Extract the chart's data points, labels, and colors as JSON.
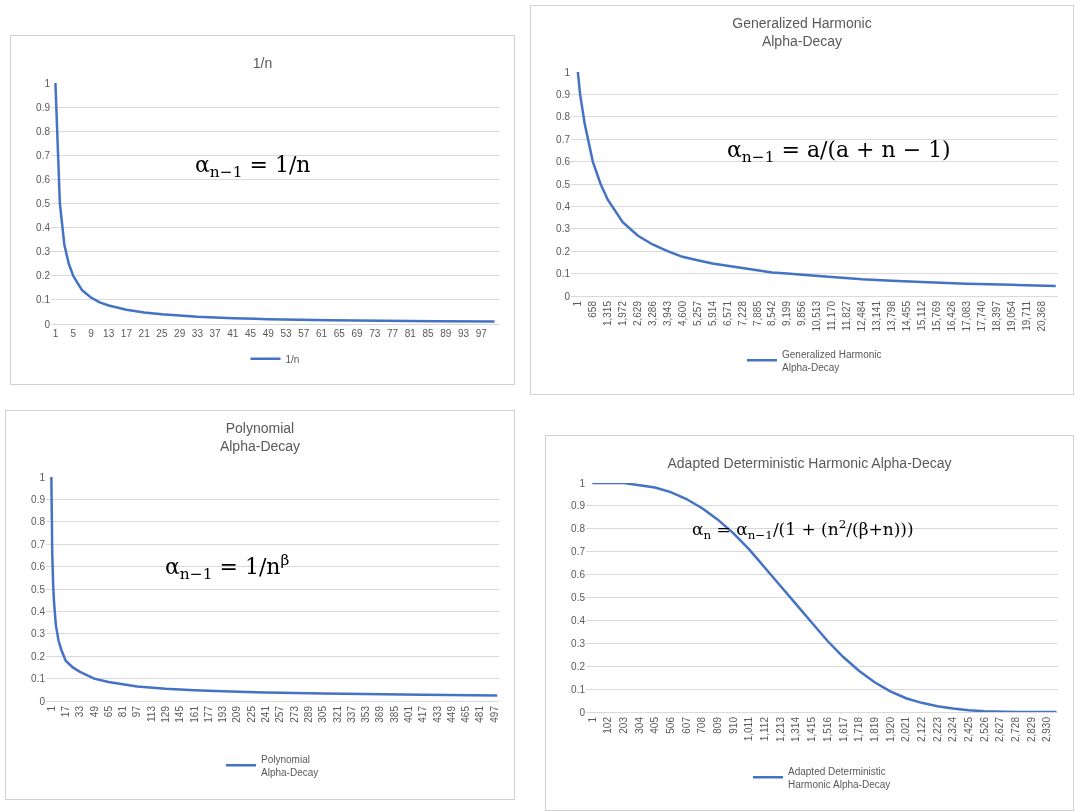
{
  "chart_data": [
    {
      "type": "line",
      "title": "1/n",
      "x": [
        1,
        2,
        3,
        4,
        5,
        6,
        7,
        9,
        11,
        13,
        17,
        21,
        25,
        33,
        41,
        49,
        63,
        87,
        100
      ],
      "xlim": [
        0,
        101
      ],
      "xticks": [
        1,
        5,
        9,
        13,
        17,
        21,
        25,
        29,
        33,
        37,
        41,
        45,
        49,
        53,
        57,
        61,
        65,
        69,
        73,
        77,
        81,
        85,
        89,
        93,
        97
      ],
      "ylim": [
        0,
        1
      ],
      "yticks": [
        0,
        0.1,
        0.2,
        0.3,
        0.4,
        0.5,
        0.6,
        0.7,
        0.8,
        0.9,
        1
      ],
      "series": [
        {
          "name": "1/n",
          "color": "#4472c4",
          "values": [
            1,
            0.5,
            0.33,
            0.25,
            0.2,
            0.17,
            0.14,
            0.11,
            0.09,
            0.077,
            0.059,
            0.048,
            0.04,
            0.03,
            0.024,
            0.02,
            0.016,
            0.011,
            0.01
          ]
        }
      ],
      "annotations": [
        "α$_{n−1}$ = 1/n"
      ],
      "legend": "bottom",
      "grid": "y",
      "marker": "none",
      "line_style": "solid"
    },
    {
      "type": "line",
      "title": "Generalized Harmonic\nAlpha-Decay",
      "x": [
        1,
        100,
        300,
        658,
        1000,
        1315,
        1972,
        2629,
        3286,
        3943,
        4600,
        5257,
        5914,
        6571,
        7228,
        7885,
        8542,
        9199,
        9856,
        11170,
        12484,
        13798,
        15112,
        17083,
        19054,
        21000
      ],
      "xlim": [
        -300,
        21100
      ],
      "xticks": [
        1,
        658,
        {
          "value": 1315,
          "label": "1,315"
        },
        {
          "value": 1972,
          "label": "1,972"
        },
        {
          "value": 2629,
          "label": "2,629"
        },
        {
          "value": 3286,
          "label": "3,286"
        },
        {
          "value": 3943,
          "label": "3,943"
        },
        {
          "value": 4600,
          "label": "4,600"
        },
        {
          "value": 5257,
          "label": "5,257"
        },
        {
          "value": 5914,
          "label": "5,914"
        },
        {
          "value": 6571,
          "label": "6,571"
        },
        {
          "value": 7228,
          "label": "7,228"
        },
        {
          "value": 7885,
          "label": "7,885"
        },
        {
          "value": 8542,
          "label": "8,542"
        },
        {
          "value": 9199,
          "label": "9,199"
        },
        {
          "value": 9856,
          "label": "9,856"
        },
        {
          "value": 10513,
          "label": "10,513"
        },
        {
          "value": 11170,
          "label": "11,170"
        },
        {
          "value": 11827,
          "label": "11,827"
        },
        {
          "value": 12484,
          "label": "12,484"
        },
        {
          "value": 13141,
          "label": "13,141"
        },
        {
          "value": 13798,
          "label": "13,798"
        },
        {
          "value": 14455,
          "label": "14,455"
        },
        {
          "value": 15112,
          "label": "15,112"
        },
        {
          "value": 15769,
          "label": "15,769"
        },
        {
          "value": 16426,
          "label": "16,426"
        },
        {
          "value": 17083,
          "label": "17,083"
        },
        {
          "value": 17740,
          "label": "17,740"
        },
        {
          "value": 18397,
          "label": "18,397"
        },
        {
          "value": 19054,
          "label": "19,054"
        },
        {
          "value": 19711,
          "label": "19,711"
        },
        {
          "value": 20368,
          "label": "20,368"
        }
      ],
      "ylim": [
        0,
        1
      ],
      "yticks": [
        0,
        0.1,
        0.2,
        0.3,
        0.4,
        0.5,
        0.6,
        0.7,
        0.8,
        0.9,
        1
      ],
      "series": [
        {
          "name": "Generalized Harmonic\nAlpha-Decay",
          "color": "#4472c4",
          "values": [
            1,
            0.9,
            0.77,
            0.6,
            0.5,
            0.43,
            0.33,
            0.27,
            0.23,
            0.2,
            0.175,
            0.16,
            0.145,
            0.135,
            0.125,
            0.115,
            0.105,
            0.1,
            0.095,
            0.085,
            0.075,
            0.068,
            0.062,
            0.055,
            0.05,
            0.045
          ]
        }
      ],
      "annotations": [
        "α$_{n−1}$ = a/(a + n − 1)"
      ],
      "legend": "bottom",
      "grid": "y",
      "marker": "none",
      "line_style": "solid"
    },
    {
      "type": "line",
      "title": "Polynomial\nAlpha-Decay",
      "x": [
        1,
        2,
        3,
        4,
        6,
        9,
        12,
        17,
        25,
        33,
        49,
        65,
        81,
        97,
        129,
        161,
        193,
        241,
        305,
        417,
        500
      ],
      "xlim": [
        -5,
        502
      ],
      "xticks": [
        1,
        17,
        33,
        49,
        65,
        81,
        97,
        113,
        129,
        145,
        161,
        177,
        193,
        209,
        225,
        241,
        257,
        273,
        289,
        305,
        321,
        337,
        353,
        369,
        385,
        401,
        417,
        433,
        449,
        465,
        481,
        497
      ],
      "ylim": [
        0,
        1
      ],
      "yticks": [
        0,
        0.1,
        0.2,
        0.3,
        0.4,
        0.5,
        0.6,
        0.7,
        0.8,
        0.9,
        1
      ],
      "series": [
        {
          "name": "Polynomial\nAlpha-Decay",
          "color": "#4472c4",
          "values": [
            1,
            0.66,
            0.52,
            0.44,
            0.34,
            0.27,
            0.23,
            0.18,
            0.15,
            0.13,
            0.1,
            0.085,
            0.075,
            0.065,
            0.055,
            0.048,
            0.043,
            0.038,
            0.033,
            0.028,
            0.025
          ]
        }
      ],
      "annotations": [
        "α$_{n−1}$ = 1/n$^{β}$"
      ],
      "legend": "bottom",
      "grid": "y",
      "marker": "none",
      "line_style": "solid"
    },
    {
      "type": "line",
      "title": "Adapted Deterministic Harmonic Alpha-Decay",
      "x": [
        1,
        203,
        304,
        405,
        506,
        607,
        708,
        809,
        910,
        1011,
        1112,
        1213,
        1314,
        1415,
        1516,
        1617,
        1718,
        1819,
        1920,
        2021,
        2122,
        2223,
        2324,
        2425,
        2526,
        2728,
        2990
      ],
      "xlim": [
        -40,
        3000
      ],
      "xticks": [
        1,
        102,
        203,
        304,
        405,
        506,
        607,
        708,
        809,
        910,
        {
          "value": 1011,
          "label": "1,011"
        },
        {
          "value": 1112,
          "label": "1,112"
        },
        {
          "value": 1213,
          "label": "1,213"
        },
        {
          "value": 1314,
          "label": "1,314"
        },
        {
          "value": 1415,
          "label": "1,415"
        },
        {
          "value": 1516,
          "label": "1,516"
        },
        {
          "value": 1617,
          "label": "1,617"
        },
        {
          "value": 1718,
          "label": "1,718"
        },
        {
          "value": 1819,
          "label": "1,819"
        },
        {
          "value": 1920,
          "label": "1,920"
        },
        {
          "value": 2021,
          "label": "2,021"
        },
        {
          "value": 2122,
          "label": "2,122"
        },
        {
          "value": 2223,
          "label": "2,223"
        },
        {
          "value": 2324,
          "label": "2,324"
        },
        {
          "value": 2425,
          "label": "2,425"
        },
        {
          "value": 2526,
          "label": "2,526"
        },
        {
          "value": 2627,
          "label": "2,627"
        },
        {
          "value": 2728,
          "label": "2,728"
        },
        {
          "value": 2829,
          "label": "2,829"
        },
        {
          "value": 2930,
          "label": "2,930"
        }
      ],
      "ylim": [
        0,
        1
      ],
      "yticks": [
        0,
        0.1,
        0.2,
        0.3,
        0.4,
        0.5,
        0.6,
        0.7,
        0.8,
        0.9,
        1
      ],
      "series": [
        {
          "name": "Adapted Deterministic\nHarmonic Alpha-Decay",
          "color": "#4472c4",
          "values": [
            1,
            1,
            0.99,
            0.98,
            0.96,
            0.93,
            0.89,
            0.84,
            0.78,
            0.71,
            0.63,
            0.55,
            0.47,
            0.39,
            0.31,
            0.24,
            0.18,
            0.13,
            0.09,
            0.06,
            0.04,
            0.025,
            0.015,
            0.008,
            0.003,
            0,
            0
          ]
        }
      ],
      "annotations": [
        "α$_{n}$ = α$_{n−1}$/(1 + (n$^{2}$/(β+n)))"
      ],
      "legend": "bottom",
      "grid": "y",
      "marker": "none",
      "line_style": "solid"
    }
  ]
}
